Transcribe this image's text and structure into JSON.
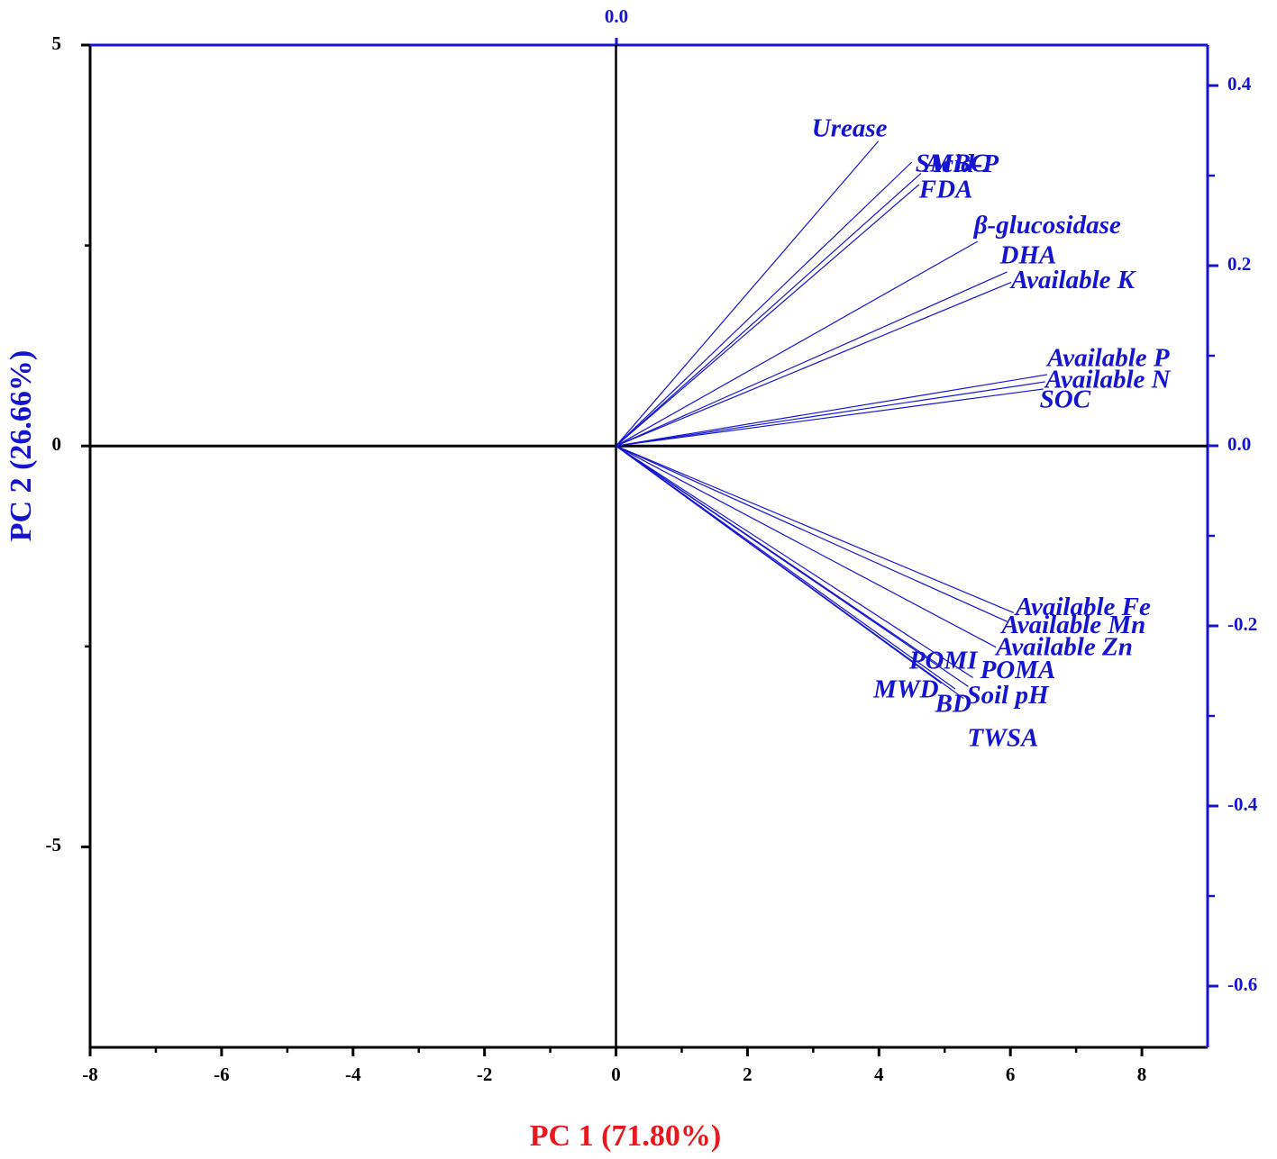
{
  "chart_data": {
    "type": "biplot",
    "xlabel": "PC 1 (71.80%)",
    "ylabel": "PC 2 (26.66%)",
    "xlabel_color": "#e8181e",
    "ylabel_color": "#1515d0",
    "color": "#1515d0",
    "xlim": [
      -8,
      9
    ],
    "xticks": [
      -8,
      -6,
      -4,
      -2,
      0,
      2,
      4,
      6,
      8
    ],
    "xminor": [
      -7,
      -5,
      -3,
      -1,
      1,
      3,
      5,
      7
    ],
    "ylim": [
      -7.5,
      5
    ],
    "yticks": [
      5,
      0,
      -5
    ],
    "yminor": [
      2.5,
      -2.5
    ],
    "x2lim": [
      -0.584,
      0.656
    ],
    "x2ticks": [
      {
        "value": 0,
        "label": "0.0"
      }
    ],
    "y2lim": [
      -0.668,
      0.445
    ],
    "y2ticks": [
      {
        "value": 0.4,
        "label": "0.4"
      },
      {
        "value": 0.2,
        "label": "0.2"
      },
      {
        "value": 0,
        "label": "0.0"
      },
      {
        "value": -0.2,
        "label": "-0.2"
      },
      {
        "value": -0.4,
        "label": "-0.4"
      },
      {
        "value": -0.6,
        "label": "-0.6"
      }
    ],
    "y2minor": [
      0.3,
      0.1,
      -0.1,
      -0.3,
      -0.5
    ],
    "loadings": {
      "names": [
        "Urease",
        "SMBC",
        "Acid-P",
        "FDA",
        "β-glucosidase",
        "DHA",
        "Available K",
        "Available P",
        "Available N",
        "SOC",
        "Available Fe",
        "Available Mn",
        "Available Zn",
        "POMA",
        "POMI",
        "MWD",
        "BD",
        "Soil pH",
        "TWSA"
      ],
      "x": [
        3.99,
        4.5,
        4.64,
        4.61,
        5.5,
        5.95,
        6.01,
        6.56,
        6.53,
        6.5,
        6.05,
        5.95,
        5.78,
        5.43,
        4.95,
        4.95,
        5.16,
        5.36,
        5.29
      ],
      "y": [
        3.8,
        3.54,
        3.4,
        3.26,
        2.55,
        2.17,
        2.04,
        0.89,
        0.8,
        0.71,
        -2.08,
        -2.19,
        -2.51,
        -2.89,
        -2.75,
        -2.96,
        -3.03,
        -3.0,
        -3.15
      ]
    }
  }
}
